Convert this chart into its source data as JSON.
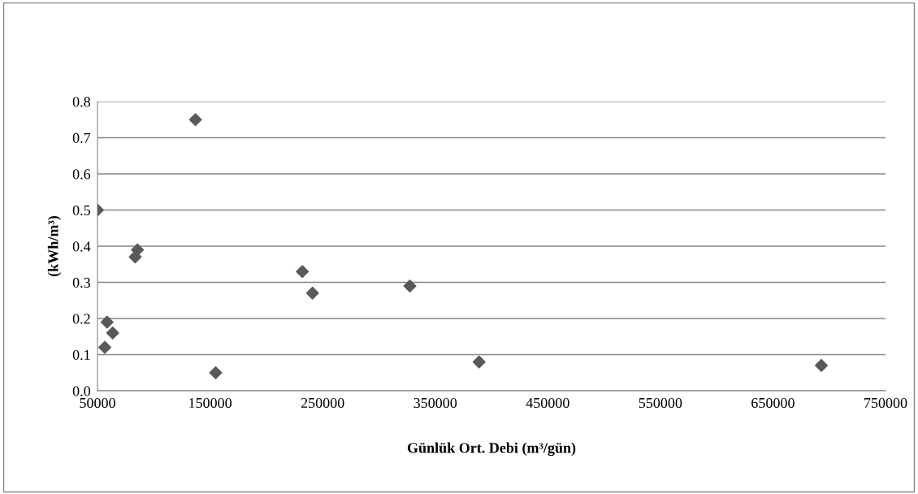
{
  "chart_data": {
    "type": "scatter",
    "xlabel": "Günlük Ort. Debi (m³/gün)",
    "ylabel": "(kWh/m³)",
    "x": [
      50000,
      137000,
      83500,
      85500,
      58500,
      63500,
      56500,
      155000,
      232000,
      241000,
      327500,
      389000,
      693000
    ],
    "series": [
      {
        "color": "#595959",
        "values": [
          0.5,
          0.75,
          0.37,
          0.39,
          0.19,
          0.16,
          0.12,
          0.05,
          0.33,
          0.27,
          0.29,
          0.08,
          0.07
        ]
      }
    ],
    "marker": "diamond",
    "xlim": [
      50000,
      750000
    ],
    "xticks": [
      50000,
      150000,
      250000,
      350000,
      450000,
      550000,
      650000,
      750000
    ],
    "ylim": [
      0,
      0.8
    ],
    "yticks": [
      {
        "value": 0,
        "label": "0.0"
      },
      {
        "value": 0.1,
        "label": "0.1"
      },
      {
        "value": 0.2,
        "label": "0.2"
      },
      {
        "value": 0.3,
        "label": "0.3"
      },
      {
        "value": 0.4,
        "label": "0.4"
      },
      {
        "value": 0.5,
        "label": "0.5"
      },
      {
        "value": 0.6,
        "label": "0.6"
      },
      {
        "value": 0.7,
        "label": "0.7"
      },
      {
        "value": 0.8,
        "label": "0.8"
      }
    ],
    "grid": "y",
    "legend": false
  }
}
